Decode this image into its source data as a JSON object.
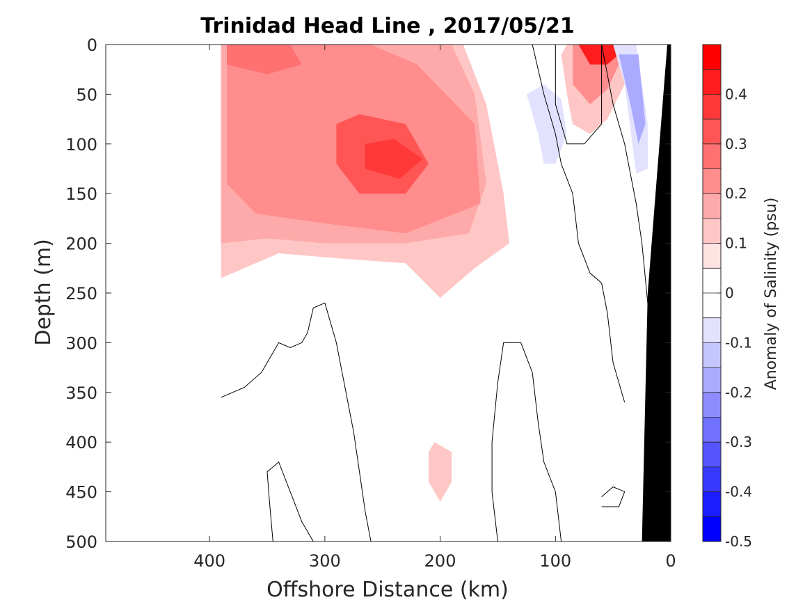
{
  "chart_data": {
    "type": "heatmap",
    "title": "Trinidad Head Line , 2017/05/21",
    "xlabel": "Offshore Distance (km)",
    "ylabel": "Depth (m)",
    "xlim": [
      490,
      0
    ],
    "ylim": [
      0,
      500
    ],
    "x_ticks": [
      "400",
      "300",
      "200",
      "100",
      "0"
    ],
    "x_tick_values": [
      400,
      300,
      200,
      100,
      0
    ],
    "y_ticks": [
      "0",
      "50",
      "100",
      "150",
      "200",
      "250",
      "300",
      "350",
      "400",
      "450",
      "500"
    ],
    "y_tick_values": [
      0,
      50,
      100,
      150,
      200,
      250,
      300,
      350,
      400,
      450,
      500
    ],
    "colorbar": {
      "label": "Anomaly of Salinity (psu)",
      "range": [
        -0.5,
        0.5
      ],
      "tick_labels": [
        "0.4",
        "0.3",
        "0.2",
        "0.1",
        "0",
        "-0.1",
        "-0.2",
        "-0.3",
        "-0.4",
        "-0.5"
      ],
      "tick_values": [
        0.4,
        0.3,
        0.2,
        0.1,
        0,
        -0.1,
        -0.2,
        -0.3,
        -0.4,
        -0.5
      ],
      "levels": [
        {
          "lo": 0.45,
          "hi": 0.5,
          "color": "#ff0000"
        },
        {
          "lo": 0.4,
          "hi": 0.45,
          "color": "#ff1c1c"
        },
        {
          "lo": 0.35,
          "hi": 0.4,
          "color": "#ff3838"
        },
        {
          "lo": 0.3,
          "hi": 0.35,
          "color": "#ff5555"
        },
        {
          "lo": 0.25,
          "hi": 0.3,
          "color": "#ff7171"
        },
        {
          "lo": 0.2,
          "hi": 0.25,
          "color": "#ff8d8d"
        },
        {
          "lo": 0.15,
          "hi": 0.2,
          "color": "#ffaaaa"
        },
        {
          "lo": 0.1,
          "hi": 0.15,
          "color": "#ffc6c6"
        },
        {
          "lo": 0.05,
          "hi": 0.1,
          "color": "#ffe2e2"
        },
        {
          "lo": 0.0,
          "hi": 0.05,
          "color": "#ffffff"
        },
        {
          "lo": -0.05,
          "hi": 0.0,
          "color": "#ffffff"
        },
        {
          "lo": -0.1,
          "hi": -0.05,
          "color": "#e2e2ff"
        },
        {
          "lo": -0.15,
          "hi": -0.1,
          "color": "#c6c6ff"
        },
        {
          "lo": -0.2,
          "hi": -0.15,
          "color": "#aaaaff"
        },
        {
          "lo": -0.25,
          "hi": -0.2,
          "color": "#8d8dff"
        },
        {
          "lo": -0.3,
          "hi": -0.25,
          "color": "#7171ff"
        },
        {
          "lo": -0.35,
          "hi": -0.3,
          "color": "#5555ff"
        },
        {
          "lo": -0.4,
          "hi": -0.35,
          "color": "#3838ff"
        },
        {
          "lo": -0.45,
          "hi": -0.4,
          "color": "#1c1cff"
        },
        {
          "lo": -0.5,
          "hi": -0.45,
          "color": "#0000ff"
        }
      ]
    },
    "positive_regions": [
      {
        "name": "upper-offshore-anomaly",
        "value": 0.1,
        "points": [
          [
            390,
            0
          ],
          [
            180,
            0
          ],
          [
            160,
            60
          ],
          [
            145,
            150
          ],
          [
            140,
            200
          ],
          [
            170,
            225
          ],
          [
            200,
            255
          ],
          [
            230,
            220
          ],
          [
            290,
            215
          ],
          [
            340,
            210
          ],
          [
            390,
            235
          ]
        ]
      },
      {
        "name": "offshore-core-outer",
        "value": 0.15,
        "points": [
          [
            390,
            0
          ],
          [
            190,
            0
          ],
          [
            170,
            50
          ],
          [
            160,
            140
          ],
          [
            175,
            190
          ],
          [
            230,
            200
          ],
          [
            300,
            200
          ],
          [
            350,
            195
          ],
          [
            390,
            200
          ]
        ]
      },
      {
        "name": "offshore-core-mid",
        "value": 0.2,
        "points": [
          [
            385,
            0
          ],
          [
            260,
            0
          ],
          [
            220,
            20
          ],
          [
            170,
            80
          ],
          [
            165,
            160
          ],
          [
            230,
            190
          ],
          [
            300,
            180
          ],
          [
            360,
            170
          ],
          [
            385,
            140
          ]
        ]
      },
      {
        "name": "offshore-core-inner",
        "value": 0.3,
        "points": [
          [
            290,
            80
          ],
          [
            270,
            70
          ],
          [
            230,
            80
          ],
          [
            210,
            120
          ],
          [
            230,
            150
          ],
          [
            270,
            150
          ],
          [
            290,
            120
          ]
        ]
      },
      {
        "name": "offshore-core-peak",
        "value": 0.35,
        "points": [
          [
            265,
            100
          ],
          [
            240,
            95
          ],
          [
            215,
            115
          ],
          [
            235,
            135
          ],
          [
            265,
            125
          ]
        ]
      },
      {
        "name": "surface-offshore-patch",
        "value": 0.25,
        "points": [
          [
            385,
            0
          ],
          [
            330,
            0
          ],
          [
            320,
            20
          ],
          [
            350,
            30
          ],
          [
            385,
            20
          ]
        ]
      },
      {
        "name": "nearshore-surface-outer",
        "value": 0.1,
        "points": [
          [
            95,
            10
          ],
          [
            90,
            50
          ],
          [
            85,
            80
          ],
          [
            70,
            90
          ],
          [
            55,
            75
          ],
          [
            40,
            40
          ],
          [
            45,
            0
          ],
          [
            90,
            0
          ]
        ]
      },
      {
        "name": "nearshore-surface-mid",
        "value": 0.2,
        "points": [
          [
            85,
            0
          ],
          [
            85,
            40
          ],
          [
            70,
            60
          ],
          [
            55,
            45
          ],
          [
            45,
            20
          ],
          [
            50,
            0
          ]
        ]
      },
      {
        "name": "nearshore-surface-core",
        "value": 0.4,
        "points": [
          [
            80,
            0
          ],
          [
            70,
            20
          ],
          [
            55,
            20
          ],
          [
            45,
            10
          ],
          [
            50,
            0
          ]
        ]
      },
      {
        "name": "deep-patch",
        "value": 0.1,
        "points": [
          [
            205,
            400
          ],
          [
            190,
            410
          ],
          [
            190,
            440
          ],
          [
            200,
            460
          ],
          [
            210,
            440
          ],
          [
            210,
            410
          ]
        ]
      }
    ],
    "negative_regions": [
      {
        "name": "mid-shelf-fresh-anomaly",
        "value": -0.1,
        "points": [
          [
            125,
            50
          ],
          [
            115,
            90
          ],
          [
            110,
            120
          ],
          [
            100,
            120
          ],
          [
            90,
            90
          ],
          [
            95,
            55
          ],
          [
            110,
            40
          ]
        ]
      },
      {
        "name": "inshore-fresh-anomaly",
        "value": -0.1,
        "points": [
          [
            50,
            0
          ],
          [
            40,
            40
          ],
          [
            30,
            130
          ],
          [
            20,
            125
          ],
          [
            20,
            80
          ],
          [
            30,
            0
          ]
        ]
      },
      {
        "name": "inshore-fresh-core",
        "value": -0.2,
        "points": [
          [
            45,
            10
          ],
          [
            35,
            60
          ],
          [
            28,
            100
          ],
          [
            22,
            80
          ],
          [
            28,
            10
          ]
        ]
      }
    ],
    "zero_contours": [
      {
        "points": [
          [
            390,
            355
          ],
          [
            370,
            345
          ],
          [
            355,
            330
          ],
          [
            340,
            300
          ],
          [
            330,
            305
          ],
          [
            320,
            300
          ],
          [
            315,
            290
          ],
          [
            310,
            265
          ],
          [
            300,
            260
          ],
          [
            290,
            300
          ],
          [
            285,
            330
          ],
          [
            280,
            360
          ],
          [
            275,
            390
          ],
          [
            270,
            430
          ],
          [
            265,
            470
          ],
          [
            260,
            500
          ]
        ]
      },
      {
        "points": [
          [
            345,
            500
          ],
          [
            348,
            460
          ],
          [
            350,
            430
          ],
          [
            340,
            420
          ],
          [
            330,
            450
          ],
          [
            320,
            480
          ],
          [
            310,
            500
          ]
        ]
      },
      {
        "points": [
          [
            150,
            500
          ],
          [
            155,
            450
          ],
          [
            155,
            400
          ],
          [
            150,
            340
          ],
          [
            145,
            300
          ],
          [
            130,
            300
          ],
          [
            120,
            330
          ],
          [
            115,
            380
          ],
          [
            110,
            420
          ],
          [
            100,
            450
          ],
          [
            95,
            500
          ]
        ]
      },
      {
        "points": [
          [
            120,
            0
          ],
          [
            110,
            50
          ],
          [
            100,
            90
          ],
          [
            95,
            120
          ],
          [
            85,
            150
          ],
          [
            80,
            200
          ],
          [
            70,
            230
          ],
          [
            60,
            240
          ],
          [
            55,
            270
          ],
          [
            50,
            320
          ],
          [
            40,
            360
          ]
        ]
      },
      {
        "points": [
          [
            60,
            0
          ],
          [
            60,
            80
          ],
          [
            75,
            100
          ],
          [
            90,
            100
          ],
          [
            100,
            60
          ],
          [
            100,
            0
          ]
        ]
      },
      {
        "points": [
          [
            60,
            0
          ],
          [
            50,
            60
          ],
          [
            40,
            100
          ],
          [
            30,
            160
          ],
          [
            25,
            200
          ],
          [
            20,
            260
          ],
          [
            15,
            330
          ],
          [
            10,
            380
          ],
          [
            5,
            460
          ]
        ]
      },
      {
        "points": [
          [
            60,
            455
          ],
          [
            50,
            445
          ],
          [
            40,
            450
          ],
          [
            45,
            465
          ],
          [
            60,
            465
          ]
        ]
      }
    ],
    "bathymetry": {
      "name": "seafloor",
      "color": "#000000",
      "points": [
        [
          0,
          0
        ],
        [
          3,
          0
        ],
        [
          20,
          250
        ],
        [
          25,
          500
        ],
        [
          0,
          500
        ]
      ]
    }
  }
}
